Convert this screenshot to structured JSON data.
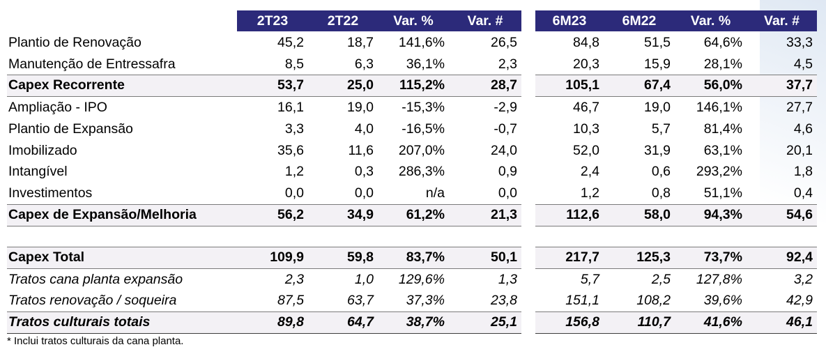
{
  "headers": {
    "left": [
      "2T23",
      "2T22",
      "Var. %",
      "Var. #"
    ],
    "right": [
      "6M23",
      "6M22",
      "Var. %",
      "Var. #"
    ]
  },
  "rows": [
    {
      "label": "Plantio de Renovação",
      "style": "normal",
      "values": [
        "45,2",
        "18,7",
        "141,6%",
        "26,5",
        "84,8",
        "51,5",
        "64,6%",
        "33,3"
      ]
    },
    {
      "label": "Manutenção de Entressafra",
      "style": "normal",
      "values": [
        "8,5",
        "6,3",
        "36,1%",
        "2,3",
        "20,3",
        "15,9",
        "28,1%",
        "4,5"
      ]
    },
    {
      "label": "Capex Recorrente",
      "style": "bold",
      "values": [
        "53,7",
        "25,0",
        "115,2%",
        "28,7",
        "105,1",
        "67,4",
        "56,0%",
        "37,7"
      ]
    },
    {
      "label": "Ampliação - IPO",
      "style": "normal",
      "values": [
        "16,1",
        "19,0",
        "-15,3%",
        "-2,9",
        "46,7",
        "19,0",
        "146,1%",
        "27,7"
      ]
    },
    {
      "label": "Plantio de Expansão",
      "style": "normal",
      "values": [
        "3,3",
        "4,0",
        "-16,5%",
        "-0,7",
        "10,3",
        "5,7",
        "81,4%",
        "4,6"
      ]
    },
    {
      "label": "Imobilizado",
      "style": "normal",
      "values": [
        "35,6",
        "11,6",
        "207,0%",
        "24,0",
        "52,0",
        "31,9",
        "63,1%",
        "20,1"
      ]
    },
    {
      "label": "Intangível",
      "style": "normal",
      "values": [
        "1,2",
        "0,3",
        "286,3%",
        "0,9",
        "2,4",
        "0,6",
        "293,2%",
        "1,8"
      ]
    },
    {
      "label": "Investimentos",
      "style": "normal",
      "values": [
        "0,0",
        "0,0",
        "n/a",
        "0,0",
        "1,2",
        "0,8",
        "51,1%",
        "0,4"
      ]
    },
    {
      "label": "Capex de Expansão/Melhoria",
      "style": "bold",
      "values": [
        "56,2",
        "34,9",
        "61,2%",
        "21,3",
        "112,6",
        "58,0",
        "94,3%",
        "54,6"
      ]
    },
    {
      "label": "Capex Total",
      "style": "bold",
      "values": [
        "109,9",
        "59,8",
        "83,7%",
        "50,1",
        "217,7",
        "125,3",
        "73,7%",
        "92,4"
      ]
    },
    {
      "label": "Tratos cana planta expansão",
      "style": "italic",
      "values": [
        "2,3",
        "1,0",
        "129,6%",
        "1,3",
        "5,7",
        "2,5",
        "127,8%",
        "3,2"
      ]
    },
    {
      "label": "Tratos renovação / soqueira",
      "style": "italic",
      "values": [
        "87,5",
        "63,7",
        "37,3%",
        "23,8",
        "151,1",
        "108,2",
        "39,6%",
        "42,9"
      ]
    },
    {
      "label": "Tratos culturais totais",
      "style": "bold-italic",
      "values": [
        "89,8",
        "64,7",
        "38,7%",
        "25,1",
        "156,8",
        "110,7",
        "41,6%",
        "46,1"
      ]
    }
  ],
  "footnote": "* Inclui tratos culturais da cana planta.",
  "colors": {
    "header_bg": "#2c2a7a",
    "header_text": "#ffffff",
    "band_bg": "#f3f1f5"
  }
}
